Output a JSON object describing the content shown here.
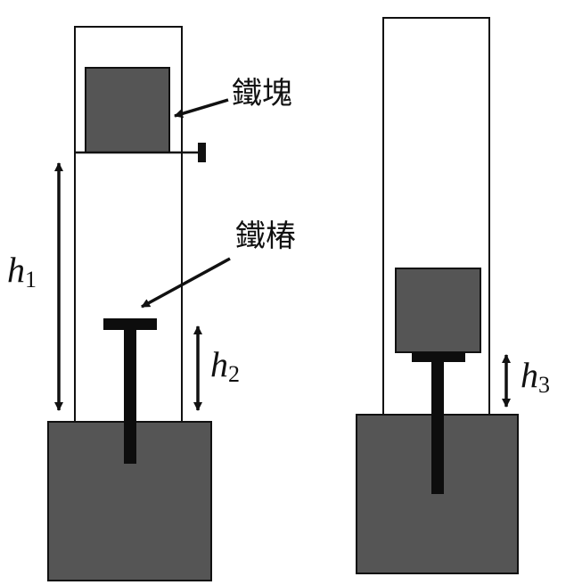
{
  "labels": {
    "iron_block": "鐵塊",
    "iron_rod": "鐵椿",
    "h1_var": "h",
    "h1_sub": "1",
    "h2_var": "h",
    "h2_sub": "2",
    "h3_var": "h",
    "h3_sub": "3"
  },
  "colors": {
    "solid_fill": "#555555",
    "rod_fill": "#0d0d0d",
    "stroke": "#111111",
    "background": "#ffffff"
  }
}
